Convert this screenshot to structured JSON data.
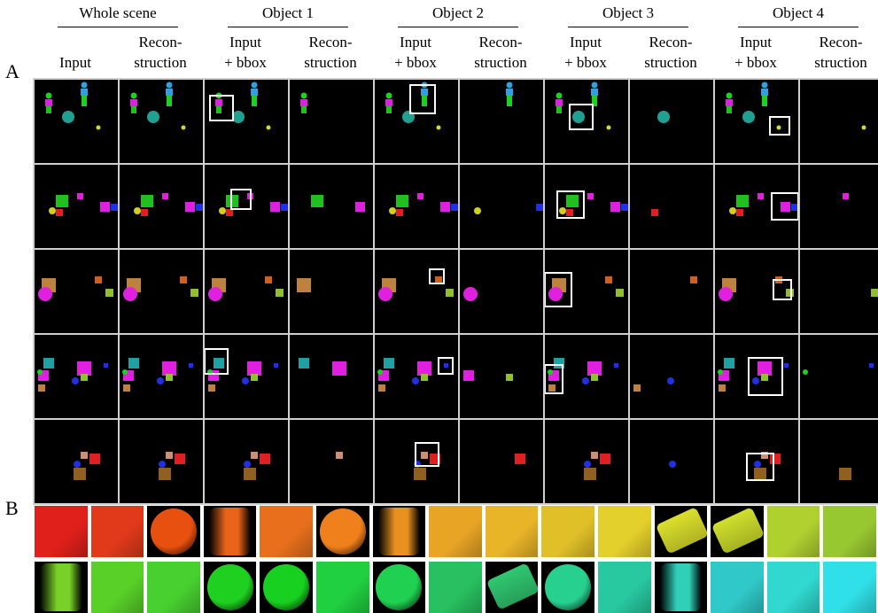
{
  "figure": {
    "panel_labels": {
      "a": "A",
      "b": "B"
    },
    "column_groups": [
      {
        "title": "Whole scene",
        "subs": [
          [
            "Input"
          ],
          [
            "Recon-",
            "struction"
          ]
        ]
      },
      {
        "title": "Object 1",
        "subs": [
          [
            "Input",
            "+ bbox"
          ],
          [
            "Recon-",
            "struction"
          ]
        ]
      },
      {
        "title": "Object 2",
        "subs": [
          [
            "Input",
            "+ bbox"
          ],
          [
            "Recon-",
            "struction"
          ]
        ]
      },
      {
        "title": "Object 3",
        "subs": [
          [
            "Input",
            "+ bbox"
          ],
          [
            "Recon-",
            "struction"
          ]
        ]
      },
      {
        "title": "Object 4",
        "subs": [
          [
            "Input",
            "+ bbox"
          ],
          [
            "Recon-",
            "struction"
          ]
        ]
      }
    ],
    "colors": {
      "grid_lines": "#cfcfcf",
      "bbox": "#ffffff",
      "row1_swatches": [
        "#e0201a",
        "#e03a1a",
        "#e85010",
        "#e86418",
        "#e8701c",
        "#f0801c",
        "#e89020",
        "#e8a424",
        "#e8b428",
        "#e0c028",
        "#e4d02c",
        "#dce02c",
        "#d0e02c",
        "#b0d030",
        "#98c830"
      ],
      "row2_swatches": [
        "#78d028",
        "#58d028",
        "#48d030",
        "#20d020",
        "#18d020",
        "#20d040",
        "#20d050",
        "#28c060",
        "#30c870",
        "#28d090",
        "#28c8a0",
        "#30d0b8",
        "#30c8c8",
        "#30d8d0",
        "#30e0e8"
      ]
    }
  }
}
